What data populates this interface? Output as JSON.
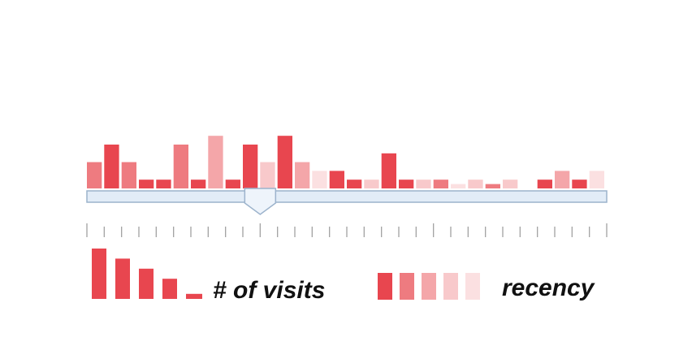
{
  "timeline": {
    "bars": [
      {
        "visits": 3,
        "recency": 2
      },
      {
        "visits": 5,
        "recency": 1
      },
      {
        "visits": 3,
        "recency": 2
      },
      {
        "visits": 1,
        "recency": 1
      },
      {
        "visits": 1,
        "recency": 1
      },
      {
        "visits": 5,
        "recency": 2
      },
      {
        "visits": 1,
        "recency": 1
      },
      {
        "visits": 6,
        "recency": 3
      },
      {
        "visits": 1,
        "recency": 1
      },
      {
        "visits": 5,
        "recency": 1
      },
      {
        "visits": 3,
        "recency": 4
      },
      {
        "visits": 6,
        "recency": 1
      },
      {
        "visits": 3,
        "recency": 3
      },
      {
        "visits": 2,
        "recency": 5
      },
      {
        "visits": 2,
        "recency": 1
      },
      {
        "visits": 1,
        "recency": 1
      },
      {
        "visits": 1,
        "recency": 4
      },
      {
        "visits": 4,
        "recency": 1
      },
      {
        "visits": 1,
        "recency": 1
      },
      {
        "visits": 1,
        "recency": 4
      },
      {
        "visits": 1,
        "recency": 2
      },
      {
        "visits": 0.5,
        "recency": 5
      },
      {
        "visits": 1,
        "recency": 4
      },
      {
        "visits": 0.5,
        "recency": 2
      },
      {
        "visits": 1,
        "recency": 4
      },
      {
        "visits": 0,
        "recency": 5
      },
      {
        "visits": 1,
        "recency": 1
      },
      {
        "visits": 2,
        "recency": 3
      },
      {
        "visits": 1,
        "recency": 1
      },
      {
        "visits": 2,
        "recency": 5
      }
    ],
    "max_visits": 6,
    "tick_count": 31,
    "major_tick_every": 10,
    "slider_value": 10
  },
  "legend": {
    "visits_label": "# of visits",
    "visits_levels": [
      5,
      4,
      3,
      2,
      0.5
    ],
    "recency_label": "recency",
    "recency_levels": [
      1,
      2,
      3,
      4,
      5
    ]
  },
  "colors": {
    "recency_1": "#e8464f",
    "recency_2": "#ee7b80",
    "recency_3": "#f4a6a9",
    "recency_4": "#f8c9cb",
    "recency_5": "#fbe0e1",
    "track_fill": "#e2ecf7",
    "track_stroke": "#9cb3cc",
    "tick": "#9a9a9a"
  }
}
